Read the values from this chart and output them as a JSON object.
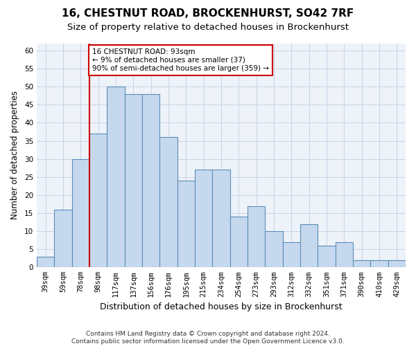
{
  "title1": "16, CHESTNUT ROAD, BROCKENHURST, SO42 7RF",
  "title2": "Size of property relative to detached houses in Brockenhurst",
  "xlabel": "Distribution of detached houses by size in Brockenhurst",
  "ylabel": "Number of detached properties",
  "categories": [
    "39sqm",
    "59sqm",
    "78sqm",
    "98sqm",
    "117sqm",
    "137sqm",
    "156sqm",
    "176sqm",
    "195sqm",
    "215sqm",
    "234sqm",
    "254sqm",
    "273sqm",
    "293sqm",
    "312sqm",
    "332sqm",
    "351sqm",
    "371sqm",
    "390sqm",
    "410sqm",
    "429sqm"
  ],
  "values": [
    3,
    16,
    30,
    37,
    50,
    48,
    48,
    36,
    24,
    27,
    27,
    14,
    17,
    10,
    7,
    12,
    6,
    7,
    2,
    2,
    2
  ],
  "bar_color": "#c5d8ed",
  "bar_edge_color": "#5b8db8",
  "vline_color": "#cc0000",
  "vline_x": 2.5,
  "annotation_text": "16 CHESTNUT ROAD: 93sqm\n← 9% of detached houses are smaller (37)\n90% of semi-detached houses are larger (359) →",
  "annotation_box_facecolor": "#ffffff",
  "annotation_box_edgecolor": "#cc0000",
  "ylim": [
    0,
    62
  ],
  "yticks": [
    0,
    5,
    10,
    15,
    20,
    25,
    30,
    35,
    40,
    45,
    50,
    55,
    60
  ],
  "bg_color": "#eef2f9",
  "grid_color": "#c8d4e8",
  "footnote": "Contains HM Land Registry data © Crown copyright and database right 2024.\nContains public sector information licensed under the Open Government Licence v3.0.",
  "title1_fontsize": 11,
  "title2_fontsize": 9.5,
  "xlabel_fontsize": 9,
  "ylabel_fontsize": 8.5,
  "tick_fontsize": 7.5,
  "annotation_fontsize": 7.5,
  "footnote_fontsize": 6.5
}
